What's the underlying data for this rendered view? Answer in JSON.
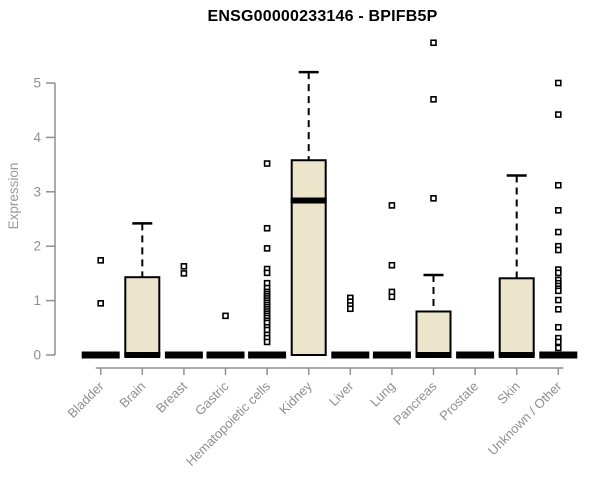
{
  "chart_data": {
    "type": "boxplot",
    "title": "ENSG00000233146 - BPIFB5P",
    "ylabel": "Expression",
    "xlabel": "",
    "ylim": [
      0,
      5
    ],
    "yticks": [
      0,
      1,
      2,
      3,
      4,
      5
    ],
    "grid": false,
    "legend": "none",
    "categories": [
      "Bladder",
      "Brain",
      "Breast",
      "Gastric",
      "Hematopoietic cells",
      "Kidney",
      "Liver",
      "Lung",
      "Pancreas",
      "Prostate",
      "Skin",
      "Unknown / Other"
    ],
    "series": [
      {
        "category": "Bladder",
        "min": 0,
        "q1": 0,
        "median": 0,
        "q3": 0,
        "whisker_max": 0,
        "outliers": [
          1.74,
          0.95
        ]
      },
      {
        "category": "Brain",
        "min": 0,
        "q1": 0,
        "median": 0,
        "q3": 1.43,
        "whisker_max": 2.42,
        "outliers": []
      },
      {
        "category": "Breast",
        "min": 0,
        "q1": 0,
        "median": 0,
        "q3": 0,
        "whisker_max": 0,
        "outliers": [
          1.63,
          1.5
        ]
      },
      {
        "category": "Gastric",
        "min": 0,
        "q1": 0,
        "median": 0,
        "q3": 0,
        "whisker_max": 0,
        "outliers": [
          0.72
        ]
      },
      {
        "category": "Hematopoietic cells",
        "min": 0,
        "q1": 0,
        "median": 0,
        "q3": 0,
        "whisker_max": 0,
        "outliers": [
          3.52,
          2.33,
          1.96,
          1.58,
          1.51,
          1.32,
          1.23,
          1.16,
          1.12,
          1.08,
          1.04,
          1.0,
          0.96,
          0.92,
          0.88,
          0.84,
          0.8,
          0.76,
          0.72,
          0.68,
          0.63,
          0.59,
          0.51,
          0.46,
          0.37,
          0.31,
          0.24
        ]
      },
      {
        "category": "Kidney",
        "min": 0,
        "q1": 0,
        "median": 2.84,
        "q3": 3.58,
        "whisker_max": 5.2,
        "outliers": []
      },
      {
        "category": "Liver",
        "min": 0,
        "q1": 0,
        "median": 0,
        "q3": 0,
        "whisker_max": 0,
        "outliers": [
          1.05,
          0.98,
          0.91,
          0.85
        ]
      },
      {
        "category": "Lung",
        "min": 0,
        "q1": 0,
        "median": 0,
        "q3": 0,
        "whisker_max": 0,
        "outliers": [
          2.75,
          1.65,
          1.16,
          1.07
        ]
      },
      {
        "category": "Pancreas",
        "min": 0,
        "q1": 0,
        "median": 0,
        "q3": 0.8,
        "whisker_max": 1.47,
        "outliers": [
          5.74,
          4.7,
          2.88
        ]
      },
      {
        "category": "Prostate",
        "min": 0,
        "q1": 0,
        "median": 0,
        "q3": 0,
        "whisker_max": 0,
        "outliers": []
      },
      {
        "category": "Skin",
        "min": 0,
        "q1": 0,
        "median": 0,
        "q3": 1.41,
        "whisker_max": 3.3,
        "outliers": []
      },
      {
        "category": "Unknown / Other",
        "min": 0,
        "q1": 0,
        "median": 0,
        "q3": 0,
        "whisker_max": 0,
        "outliers": [
          5.0,
          4.42,
          3.12,
          2.66,
          2.26,
          2.0,
          1.93,
          1.57,
          1.51,
          1.38,
          1.32,
          1.27,
          1.22,
          1.18,
          1.01,
          0.84,
          0.51,
          0.31,
          0.24,
          0.13
        ]
      }
    ],
    "colors": {
      "box_fill": "#ece5cb",
      "box_stroke": "#000000",
      "median": "#000000",
      "whisker": "#000000",
      "outlier_stroke": "#000000",
      "outlier_fill": "#ffffff",
      "axis": "#8f8f8f",
      "tick_label": "#8f8f8f",
      "title": "#000000",
      "background": "#ffffff"
    }
  }
}
